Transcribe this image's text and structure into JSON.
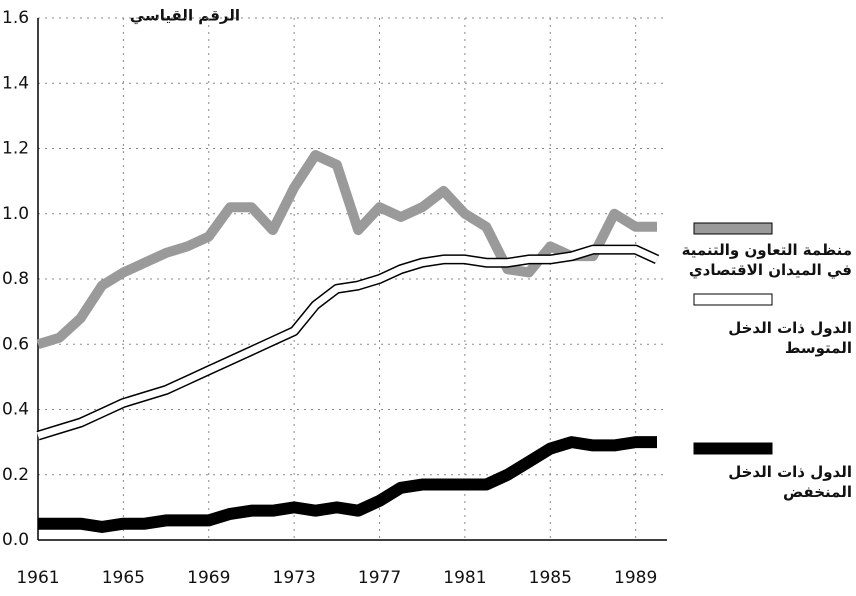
{
  "chart_data": {
    "type": "line",
    "y_label": "الرقم القياسي",
    "x": [
      1961,
      1962,
      1963,
      1964,
      1965,
      1966,
      1967,
      1968,
      1969,
      1970,
      1971,
      1972,
      1973,
      1974,
      1975,
      1976,
      1977,
      1978,
      1979,
      1980,
      1981,
      1982,
      1983,
      1984,
      1985,
      1986,
      1987,
      1988,
      1989,
      1990
    ],
    "series": [
      {
        "name": "منظمة التعاون والتنمية في الميدان الاقتصادي",
        "color": "#9a9a9a",
        "values": [
          0.6,
          0.62,
          0.68,
          0.78,
          0.82,
          0.85,
          0.88,
          0.9,
          0.93,
          1.02,
          1.02,
          0.95,
          1.08,
          1.18,
          1.15,
          0.95,
          1.02,
          0.99,
          1.02,
          1.07,
          1.0,
          0.96,
          0.83,
          0.82,
          0.9,
          0.87,
          0.87,
          1.0,
          0.96,
          0.96
        ]
      },
      {
        "name": "الدول ذات الدخل المتوسط",
        "color": "#ffffff",
        "values": [
          0.32,
          0.34,
          0.36,
          0.39,
          0.42,
          0.44,
          0.46,
          0.49,
          0.52,
          0.55,
          0.58,
          0.61,
          0.64,
          0.72,
          0.77,
          0.78,
          0.8,
          0.83,
          0.85,
          0.86,
          0.86,
          0.85,
          0.85,
          0.86,
          0.86,
          0.87,
          0.89,
          0.89,
          0.89,
          0.86
        ]
      },
      {
        "name": "الدول ذات الدخل المنخفض",
        "color": "#000000",
        "values": [
          0.05,
          0.05,
          0.05,
          0.04,
          0.05,
          0.05,
          0.06,
          0.06,
          0.06,
          0.08,
          0.09,
          0.09,
          0.1,
          0.09,
          0.1,
          0.09,
          0.12,
          0.16,
          0.17,
          0.17,
          0.17,
          0.17,
          0.2,
          0.24,
          0.28,
          0.3,
          0.29,
          0.29,
          0.3,
          0.3
        ]
      }
    ],
    "xlim": [
      1961,
      1990
    ],
    "xticks": [
      1961,
      1965,
      1969,
      1973,
      1977,
      1981,
      1985,
      1989
    ],
    "ylim": [
      0,
      1.6
    ],
    "yticks": [
      {
        "value": 0,
        "label": "0.0"
      },
      0.2,
      0.4,
      0.6,
      0.8,
      {
        "value": 1,
        "label": "1.0"
      },
      1.2,
      1.4,
      1.6
    ],
    "grid": true
  }
}
